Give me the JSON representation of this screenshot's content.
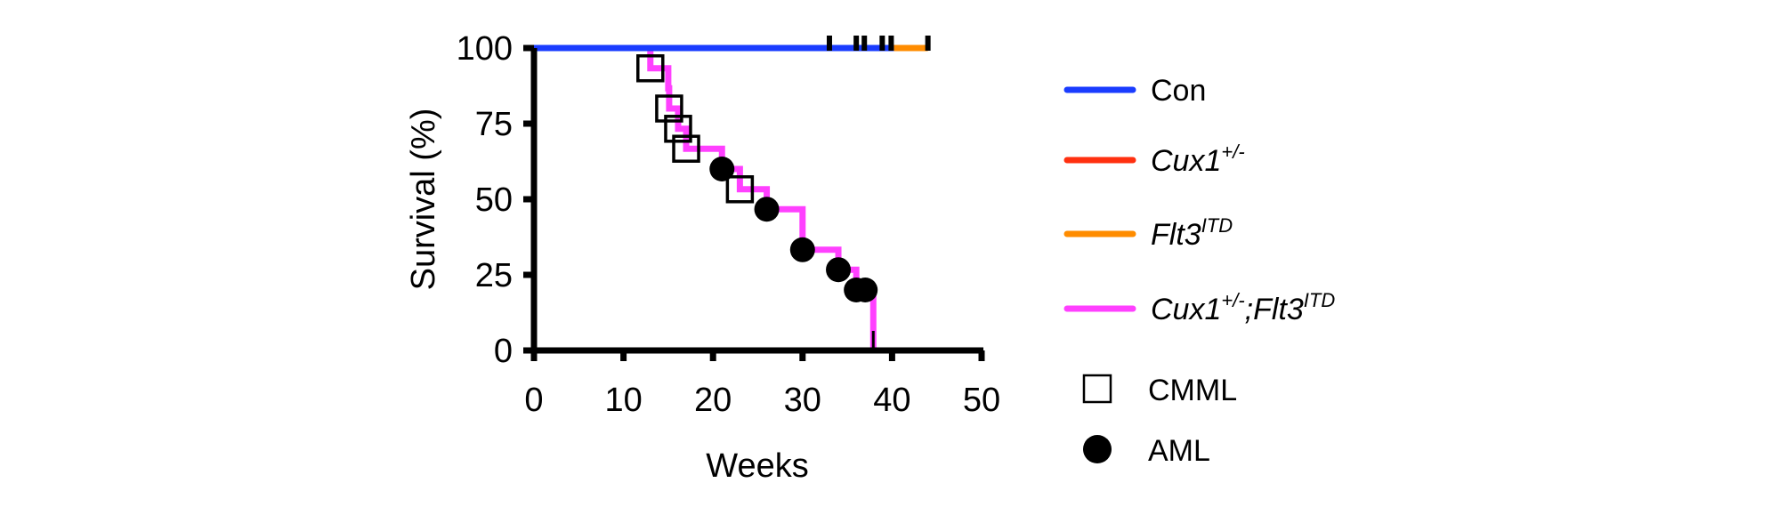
{
  "chart_data": {
    "type": "line",
    "subtype": "kaplan-meier",
    "title": "",
    "xlabel": "Weeks",
    "ylabel": "Survival (%)",
    "xlim": [
      0,
      50
    ],
    "ylim": [
      0,
      100
    ],
    "x_ticks": [
      0,
      10,
      20,
      30,
      40,
      50
    ],
    "y_ticks": [
      0,
      25,
      50,
      75,
      100
    ],
    "x_tick_labels": [
      "0",
      "10",
      "20",
      "30",
      "40",
      "50"
    ],
    "y_tick_labels": [
      "0",
      "25",
      "50",
      "75",
      "100"
    ],
    "grid": false,
    "legend_position": "right",
    "series": [
      {
        "name": "Con",
        "label_base": "Con",
        "label_sup": "",
        "label_tail": "",
        "label_tail_sup": "",
        "italic": false,
        "color": "#1a3cff",
        "steps": [
          [
            0,
            100
          ],
          [
            40.2,
            100
          ]
        ],
        "censored": [
          [
            33.0,
            100
          ],
          [
            36.0,
            100
          ],
          [
            36.9,
            100
          ],
          [
            38.9,
            100
          ],
          [
            39.9,
            100
          ]
        ]
      },
      {
        "name": "Cux1+/-",
        "label_base": "Cux1",
        "label_sup": "+/-",
        "label_tail": "",
        "label_tail_sup": "",
        "italic": true,
        "color": "#ff3010",
        "steps": [],
        "censored": []
      },
      {
        "name": "Flt3ITD",
        "label_base": "Flt3",
        "label_sup": "ITD",
        "label_tail": "",
        "label_tail_sup": "",
        "italic": true,
        "color": "#ff8c00",
        "steps": [
          [
            40.2,
            100
          ],
          [
            44.0,
            100
          ]
        ],
        "censored": [
          [
            44.0,
            100
          ]
        ]
      },
      {
        "name": "Cux1+/-;Flt3ITD",
        "label_base": "Cux1",
        "label_sup": "+/-",
        "label_tail": ";Flt3",
        "label_tail_sup": "ITD",
        "italic": true,
        "color": "#ff40ff",
        "steps": [
          [
            0,
            100
          ],
          [
            13.0,
            93.3
          ],
          [
            15.0,
            86.7
          ],
          [
            15.1,
            80.0
          ],
          [
            16.1,
            73.3
          ],
          [
            17.0,
            66.7
          ],
          [
            21.0,
            60.0
          ],
          [
            23.0,
            53.3
          ],
          [
            26.0,
            46.7
          ],
          [
            30.0,
            33.3
          ],
          [
            34.0,
            26.7
          ],
          [
            36.0,
            20.0
          ],
          [
            37.9,
            0
          ]
        ],
        "censored": [
          [
            37.9,
            0
          ]
        ]
      }
    ],
    "events": [
      {
        "week": 13.0,
        "survival": 93.3,
        "type": "CMML"
      },
      {
        "week": 15.1,
        "survival": 80.0,
        "type": "CMML"
      },
      {
        "week": 16.1,
        "survival": 73.3,
        "type": "CMML"
      },
      {
        "week": 17.0,
        "survival": 66.7,
        "type": "CMML"
      },
      {
        "week": 21.0,
        "survival": 60.0,
        "type": "AML"
      },
      {
        "week": 23.0,
        "survival": 53.3,
        "type": "CMML"
      },
      {
        "week": 26.0,
        "survival": 46.7,
        "type": "AML"
      },
      {
        "week": 30.0,
        "survival": 33.3,
        "type": "AML"
      },
      {
        "week": 34.0,
        "survival": 26.7,
        "type": "AML"
      },
      {
        "week": 36.0,
        "survival": 20.0,
        "type": "AML"
      },
      {
        "week": 37.0,
        "survival": 20.0,
        "type": "AML"
      }
    ],
    "marker_legend": [
      {
        "label": "CMML",
        "symbol": "open-square"
      },
      {
        "label": "AML",
        "symbol": "filled-circle"
      }
    ]
  }
}
